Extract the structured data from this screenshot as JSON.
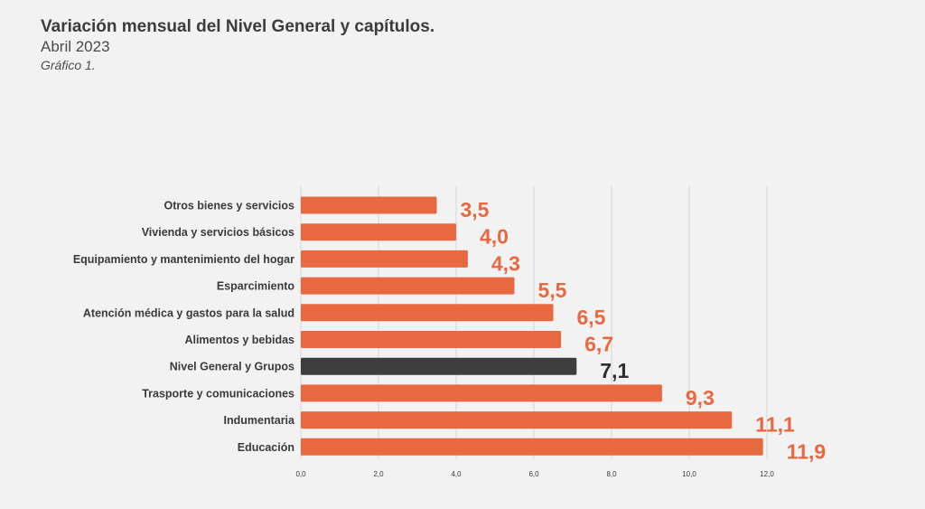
{
  "header": {
    "title": "Variación mensual del Nivel General y capítulos.",
    "subtitle": "Abril 2023",
    "note": "Gráfico 1."
  },
  "colors": {
    "bar": "#e8693f",
    "highlight": "#3d3d3d",
    "grid": "#d6d6d6",
    "background": "#f2f2f2"
  },
  "chart_data": {
    "type": "bar",
    "orientation": "horizontal",
    "categories": [
      "Otros bienes y servicios",
      "Vivienda y servicios básicos",
      "Equipamiento y mantenimiento del hogar",
      "Esparcimiento",
      "Atención médica y gastos para la salud",
      "Alimentos y bebidas",
      "Nivel General y Grupos",
      "Trasporte y comunicaciones",
      "Indumentaria",
      "Educación"
    ],
    "values": [
      3.5,
      4.0,
      4.3,
      5.5,
      6.5,
      6.7,
      7.1,
      9.3,
      11.1,
      11.9
    ],
    "value_labels": [
      "3,5",
      "4,0",
      "4,3",
      "5,5",
      "6,5",
      "6,7",
      "7,1",
      "9,3",
      "11,1",
      "11,9"
    ],
    "highlight_category": "Nivel General y Grupos",
    "xlim": [
      0,
      12
    ],
    "xticks": [
      0,
      2,
      4,
      6,
      8,
      10,
      12
    ],
    "xtick_labels": [
      "0,0",
      "2,0",
      "4,0",
      "6,0",
      "8,0",
      "10,0",
      "12,0"
    ],
    "grid": true,
    "title": "",
    "xlabel": "",
    "ylabel": ""
  }
}
